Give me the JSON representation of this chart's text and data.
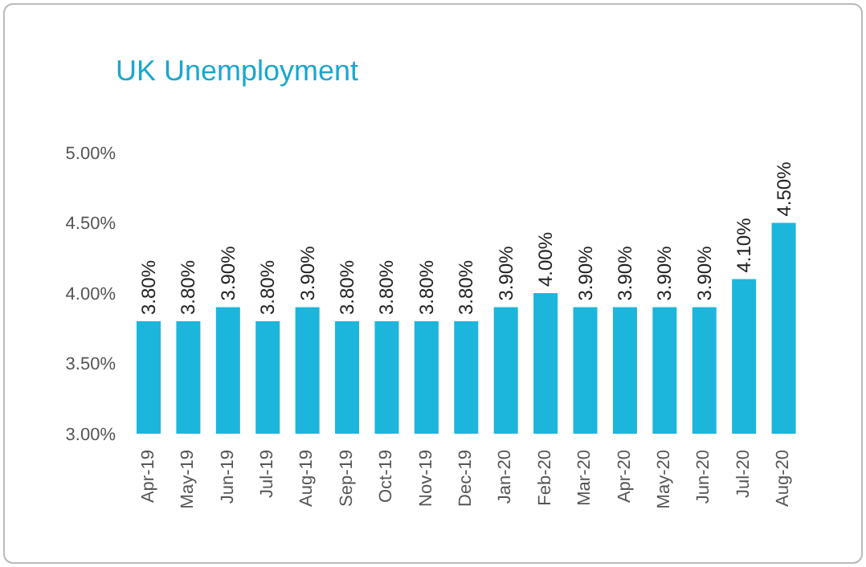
{
  "chart_data": {
    "type": "bar",
    "title": "UK Unemployment",
    "categories": [
      "Apr-19",
      "May-19",
      "Jun-19",
      "Jul-19",
      "Aug-19",
      "Sep-19",
      "Oct-19",
      "Nov-19",
      "Dec-19",
      "Jan-20",
      "Feb-20",
      "Mar-20",
      "Apr-20",
      "May-20",
      "Jun-20",
      "Jul-20",
      "Aug-20"
    ],
    "values": [
      3.8,
      3.8,
      3.9,
      3.8,
      3.9,
      3.8,
      3.8,
      3.8,
      3.8,
      3.9,
      4.0,
      3.9,
      3.9,
      3.9,
      3.9,
      4.1,
      4.5
    ],
    "value_labels": [
      "3.80%",
      "3.80%",
      "3.90%",
      "3.80%",
      "3.90%",
      "3.80%",
      "3.80%",
      "3.80%",
      "3.80%",
      "3.90%",
      "4.00%",
      "3.90%",
      "3.90%",
      "3.90%",
      "3.90%",
      "4.10%",
      "4.50%"
    ],
    "color": "#1cb5dc",
    "ylim": [
      3,
      5
    ],
    "yticks": [
      {
        "value": 3,
        "label": "3.00%"
      },
      {
        "value": 3.5,
        "label": "3.50%"
      },
      {
        "value": 4,
        "label": "4.00%"
      },
      {
        "value": 4.5,
        "label": "4.50%"
      },
      {
        "value": 5,
        "label": "5.00%"
      }
    ],
    "grid": false,
    "legend": false
  }
}
